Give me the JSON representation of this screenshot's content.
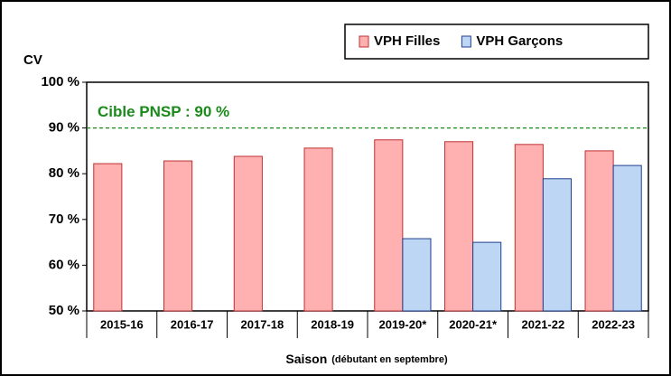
{
  "chart_data": {
    "type": "bar",
    "y_axis_label": "CV",
    "x_axis_label": "Saison",
    "x_axis_note": "(débutant en septembre)",
    "target_label": "Cible PNSP : 90 %",
    "target_value": 90,
    "target_color": "#1a8a1a",
    "categories": [
      "2015-16",
      "2016-17",
      "2017-18",
      "2018-19",
      "2019-20*",
      "2020-21*",
      "2021-22",
      "2022-23"
    ],
    "series": [
      {
        "name": "VPH Filles",
        "color": "#ffb0b0",
        "stroke": "#c03030",
        "values": [
          82.2,
          82.8,
          83.8,
          85.6,
          87.4,
          87.0,
          86.4,
          85.0
        ]
      },
      {
        "name": "VPH Garçons",
        "color": "#bcd6f4",
        "stroke": "#1f3f8f",
        "values": [
          null,
          null,
          null,
          null,
          65.8,
          65.0,
          78.9,
          81.8
        ]
      }
    ],
    "ylim": [
      50,
      100
    ],
    "yticks": [
      {
        "value": 50,
        "label": "50 %"
      },
      {
        "value": 60,
        "label": "60 %"
      },
      {
        "value": 70,
        "label": "70 %"
      },
      {
        "value": 80,
        "label": "80 %"
      },
      {
        "value": 90,
        "label": "90 %"
      },
      {
        "value": 100,
        "label": "100 %"
      }
    ],
    "legend": "top-right"
  }
}
